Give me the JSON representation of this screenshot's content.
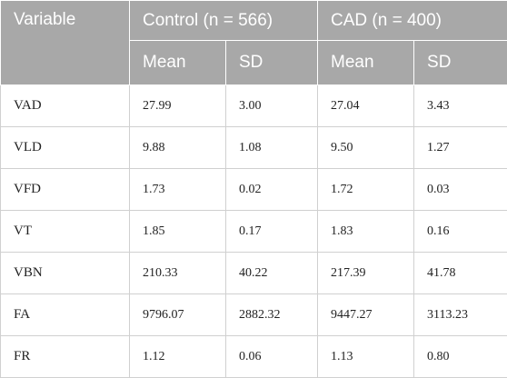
{
  "header": {
    "variable": "Variable",
    "group1": "Control (n = 566)",
    "group2": "CAD (n = 400)",
    "mean": "Mean",
    "sd": "SD"
  },
  "rows": [
    {
      "variable": "VAD",
      "control_mean": "27.99",
      "control_sd": "3.00",
      "cad_mean": "27.04",
      "cad_sd": "3.43"
    },
    {
      "variable": "VLD",
      "control_mean": "9.88",
      "control_sd": "1.08",
      "cad_mean": "9.50",
      "cad_sd": "1.27"
    },
    {
      "variable": "VFD",
      "control_mean": "1.73",
      "control_sd": "0.02",
      "cad_mean": "1.72",
      "cad_sd": "0.03"
    },
    {
      "variable": "VT",
      "control_mean": "1.85",
      "control_sd": "0.17",
      "cad_mean": "1.83",
      "cad_sd": "0.16"
    },
    {
      "variable": "VBN",
      "control_mean": "210.33",
      "control_sd": "40.22",
      "cad_mean": "217.39",
      "cad_sd": "41.78"
    },
    {
      "variable": "FA",
      "control_mean": "9796.07",
      "control_sd": "2882.32",
      "cad_mean": "9447.27",
      "cad_sd": "3113.23"
    },
    {
      "variable": "FR",
      "control_mean": "1.12",
      "control_sd": "0.06",
      "cad_mean": "1.13",
      "cad_sd": "0.80"
    }
  ]
}
